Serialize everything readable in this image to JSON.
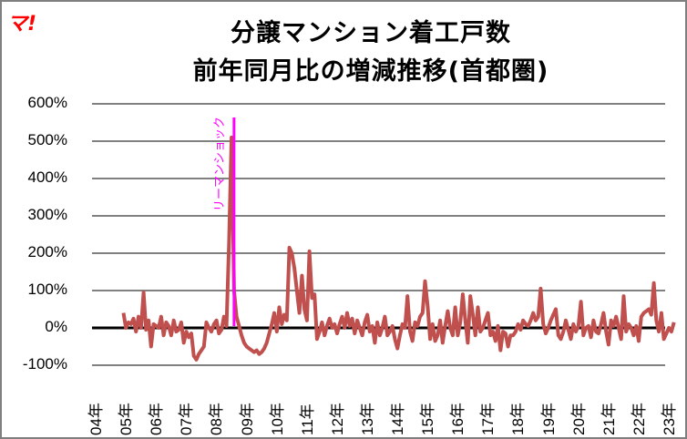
{
  "logo": "マ!",
  "title_line1": "分譲マンション着工戸数",
  "title_line2": "前年同月比の増減推移(首都圏)",
  "annotation": "リーマンショック",
  "colors": {
    "series": "#c0504d",
    "annotation": "#ff00ff",
    "grid": "#808080",
    "zero": "#000000",
    "logo": "#ff0000"
  },
  "y_ticks": [
    "600%",
    "500%",
    "400%",
    "300%",
    "200%",
    "100%",
    "0%",
    "-100%"
  ],
  "x_ticks": [
    "04年",
    "05年",
    "06年",
    "07年",
    "08年",
    "09年",
    "10年",
    "11年",
    "12年",
    "13年",
    "14年",
    "15年",
    "16年",
    "17年",
    "18年",
    "19年",
    "20年",
    "21年",
    "22年",
    "23年"
  ],
  "chart_data": {
    "type": "line",
    "title": "分譲マンション着工戸数 前年同月比の増減推移(首都圏)",
    "xlabel": "",
    "ylabel": "",
    "ylim": [
      -100,
      600
    ],
    "grid": true,
    "legend": "none",
    "annotations": [
      {
        "label": "リーマンショック",
        "x": "2008-09",
        "type": "vertical-line"
      }
    ],
    "x_start": "2005-01",
    "frequency": "monthly",
    "series": [
      {
        "name": "前年同月比",
        "values": [
          40,
          0,
          15,
          10,
          25,
          -10,
          30,
          0,
          95,
          -5,
          20,
          -50,
          10,
          5,
          0,
          30,
          -20,
          15,
          5,
          -20,
          20,
          -10,
          -5,
          15,
          -40,
          -10,
          -25,
          -15,
          -75,
          -85,
          -70,
          -60,
          -50,
          15,
          0,
          -10,
          10,
          20,
          -15,
          -5,
          30,
          5,
          230,
          510,
          100,
          30,
          5,
          -20,
          -40,
          -50,
          -55,
          -60,
          -65,
          -60,
          -70,
          -65,
          -55,
          -40,
          -15,
          10,
          40,
          -10,
          55,
          10,
          35,
          20,
          215,
          200,
          160,
          100,
          40,
          140,
          50,
          20,
          205,
          80,
          90,
          -30,
          -10,
          15,
          -20,
          5,
          25,
          0,
          10,
          -15,
          10,
          30,
          0,
          40,
          5,
          25,
          -15,
          20,
          0,
          -20,
          15,
          35,
          -10,
          5,
          -40,
          15,
          -20,
          0,
          30,
          -20,
          -10,
          5,
          -30,
          -55,
          -20,
          10,
          0,
          85,
          -10,
          -35,
          15,
          5,
          30,
          40,
          125,
          60,
          -30,
          10,
          -35,
          -20,
          20,
          -40,
          5,
          45,
          0,
          -20,
          55,
          -20,
          15,
          90,
          20,
          -40,
          85,
          35,
          -20,
          55,
          -10,
          0,
          20,
          40,
          -20,
          -10,
          -35,
          5,
          -60,
          -10,
          -15,
          -50,
          -20,
          -20,
          -10,
          10,
          -5,
          20,
          10,
          5,
          20,
          40,
          20,
          30,
          105,
          10,
          -15,
          0,
          20,
          35,
          50,
          -20,
          -30,
          -10,
          20,
          -5,
          -30,
          10,
          -10,
          5,
          70,
          -20,
          0,
          5,
          -25,
          20,
          -10,
          -15,
          10,
          40,
          -10,
          -45,
          20,
          5,
          30,
          0,
          -30,
          85,
          -10,
          10,
          0,
          -20,
          5,
          -35,
          30,
          40,
          45,
          50,
          35,
          120,
          20,
          -10,
          40,
          -30,
          -15,
          0,
          -10,
          15
        ]
      }
    ]
  }
}
